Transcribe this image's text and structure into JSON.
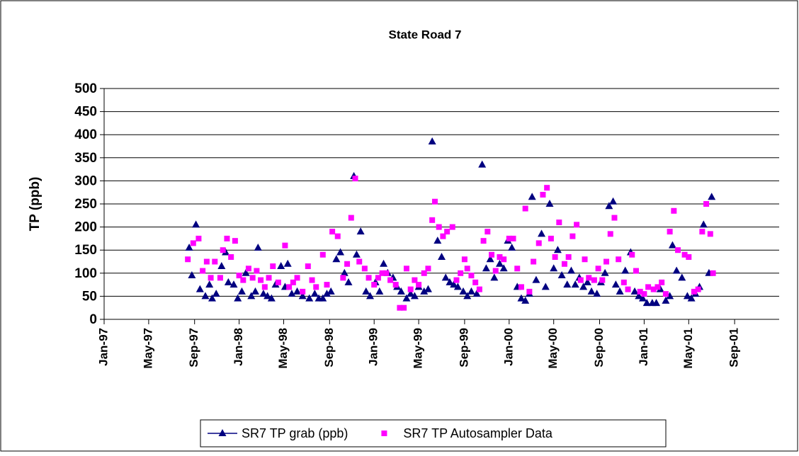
{
  "chart_data": {
    "type": "scatter",
    "title": "State Road 7",
    "y_label": "TP (ppb)",
    "xlim": [
      1997,
      2002
    ],
    "ylim": [
      0,
      500
    ],
    "yticks": [
      0,
      50,
      100,
      150,
      200,
      250,
      300,
      350,
      400,
      450,
      500
    ],
    "xticks": [
      {
        "value": 1997,
        "label": "Jan-97"
      },
      {
        "value": 1997.33,
        "label": "May-97"
      },
      {
        "value": 1997.67,
        "label": "Sep-97"
      },
      {
        "value": 1998,
        "label": "Jan-98"
      },
      {
        "value": 1998.33,
        "label": "May-98"
      },
      {
        "value": 1998.67,
        "label": "Sep-98"
      },
      {
        "value": 1999,
        "label": "Jan-99"
      },
      {
        "value": 1999.33,
        "label": "May-99"
      },
      {
        "value": 1999.67,
        "label": "Sep-99"
      },
      {
        "value": 2000,
        "label": "Jan-00"
      },
      {
        "value": 2000.33,
        "label": "May-00"
      },
      {
        "value": 2000.67,
        "label": "Sep-00"
      },
      {
        "value": 2001,
        "label": "Jan-01"
      },
      {
        "value": 2001.33,
        "label": "May-01"
      },
      {
        "value": 2001.67,
        "label": "Sep-01"
      }
    ],
    "grid": true,
    "series": [
      {
        "name": "SR7 TP grab (ppb)",
        "color": "#000080",
        "marker": "triangle",
        "x": [
          1997.63,
          1997.65,
          1997.68,
          1997.71,
          1997.75,
          1997.78,
          1997.8,
          1997.83,
          1997.87,
          1997.9,
          1997.92,
          1997.96,
          1997.99,
          1998.02,
          1998.05,
          1998.09,
          1998.12,
          1998.14,
          1998.18,
          1998.21,
          1998.24,
          1998.27,
          1998.31,
          1998.34,
          1998.36,
          1998.39,
          1998.43,
          1998.47,
          1998.52,
          1998.56,
          1998.59,
          1998.62,
          1998.65,
          1998.68,
          1998.72,
          1998.75,
          1998.78,
          1998.81,
          1998.85,
          1998.87,
          1998.9,
          1998.94,
          1998.97,
          1999.01,
          1999.04,
          1999.07,
          1999.1,
          1999.14,
          1999.17,
          1999.2,
          1999.24,
          1999.27,
          1999.3,
          1999.33,
          1999.37,
          1999.4,
          1999.43,
          1999.47,
          1999.5,
          1999.53,
          1999.56,
          1999.59,
          1999.62,
          1999.66,
          1999.69,
          1999.72,
          1999.76,
          1999.8,
          1999.83,
          1999.86,
          1999.89,
          1999.93,
          1999.96,
          1999.99,
          2000.02,
          2000.06,
          2000.09,
          2000.12,
          2000.15,
          2000.17,
          2000.2,
          2000.24,
          2000.27,
          2000.3,
          2000.33,
          2000.36,
          2000.39,
          2000.43,
          2000.46,
          2000.49,
          2000.52,
          2000.55,
          2000.58,
          2000.61,
          2000.65,
          2000.68,
          2000.71,
          2000.74,
          2000.77,
          2000.79,
          2000.82,
          2000.86,
          2000.9,
          2000.93,
          2000.96,
          2000.99,
          2001.02,
          2001.06,
          2001.09,
          2001.12,
          2001.16,
          2001.19,
          2001.21,
          2001.24,
          2001.28,
          2001.32,
          2001.35,
          2001.38,
          2001.41,
          2001.44,
          2001.48,
          2001.5
        ],
        "values": [
          155,
          95,
          205,
          65,
          50,
          75,
          45,
          55,
          115,
          145,
          80,
          75,
          45,
          60,
          100,
          50,
          60,
          155,
          55,
          50,
          45,
          75,
          115,
          70,
          120,
          55,
          60,
          50,
          45,
          55,
          45,
          45,
          55,
          60,
          130,
          145,
          100,
          80,
          310,
          140,
          190,
          60,
          50,
          80,
          60,
          120,
          100,
          90,
          70,
          60,
          45,
          55,
          50,
          70,
          60,
          65,
          385,
          170,
          135,
          90,
          80,
          75,
          70,
          60,
          50,
          60,
          55,
          335,
          110,
          130,
          90,
          120,
          110,
          170,
          155,
          70,
          45,
          40,
          55,
          265,
          85,
          185,
          70,
          250,
          110,
          150,
          95,
          75,
          105,
          75,
          90,
          70,
          80,
          60,
          55,
          80,
          100,
          245,
          255,
          75,
          60,
          105,
          145,
          60,
          50,
          45,
          35,
          35,
          35,
          65,
          40,
          50,
          160,
          105,
          90,
          50,
          45,
          55,
          70,
          205,
          100,
          265
        ]
      },
      {
        "name": "SR7 TP Autosampler Data",
        "color": "#ff00ff",
        "marker": "square",
        "x": [
          1997.62,
          1997.66,
          1997.7,
          1997.73,
          1997.76,
          1997.79,
          1997.82,
          1997.86,
          1997.88,
          1997.91,
          1997.94,
          1997.97,
          1998.0,
          1998.03,
          1998.07,
          1998.1,
          1998.13,
          1998.16,
          1998.19,
          1998.22,
          1998.25,
          1998.29,
          1998.34,
          1998.37,
          1998.4,
          1998.43,
          1998.47,
          1998.51,
          1998.54,
          1998.57,
          1998.62,
          1998.65,
          1998.69,
          1998.73,
          1998.77,
          1998.8,
          1998.83,
          1998.86,
          1998.89,
          1998.93,
          1998.96,
          1999.0,
          1999.03,
          1999.06,
          1999.09,
          1999.12,
          1999.16,
          1999.19,
          1999.22,
          1999.24,
          1999.27,
          1999.3,
          1999.33,
          1999.37,
          1999.4,
          1999.43,
          1999.45,
          1999.48,
          1999.51,
          1999.54,
          1999.58,
          1999.61,
          1999.64,
          1999.67,
          1999.69,
          1999.72,
          1999.75,
          1999.78,
          1999.81,
          1999.84,
          1999.87,
          1999.9,
          1999.93,
          1999.96,
          2000.0,
          2000.03,
          2000.06,
          2000.09,
          2000.12,
          2000.15,
          2000.18,
          2000.22,
          2000.25,
          2000.28,
          2000.31,
          2000.34,
          2000.37,
          2000.41,
          2000.44,
          2000.47,
          2000.5,
          2000.53,
          2000.56,
          2000.59,
          2000.63,
          2000.66,
          2000.69,
          2000.72,
          2000.75,
          2000.78,
          2000.81,
          2000.85,
          2000.88,
          2000.91,
          2000.94,
          2000.97,
          2001.0,
          2001.03,
          2001.07,
          2001.1,
          2001.13,
          2001.16,
          2001.19,
          2001.22,
          2001.25,
          2001.3,
          2001.33,
          2001.37,
          2001.4,
          2001.43,
          2001.46,
          2001.49,
          2001.51
        ],
        "values": [
          130,
          165,
          175,
          105,
          125,
          90,
          125,
          90,
          150,
          175,
          135,
          170,
          95,
          85,
          110,
          90,
          105,
          85,
          70,
          90,
          115,
          80,
          160,
          70,
          80,
          90,
          60,
          115,
          85,
          70,
          140,
          75,
          190,
          180,
          90,
          120,
          220,
          305,
          125,
          110,
          90,
          75,
          90,
          100,
          100,
          85,
          75,
          25,
          25,
          110,
          65,
          85,
          75,
          100,
          110,
          215,
          255,
          200,
          180,
          190,
          200,
          85,
          100,
          130,
          110,
          95,
          80,
          65,
          170,
          190,
          140,
          105,
          135,
          130,
          175,
          175,
          110,
          70,
          240,
          60,
          125,
          165,
          270,
          285,
          175,
          135,
          210,
          120,
          135,
          180,
          205,
          85,
          130,
          90,
          85,
          110,
          85,
          125,
          185,
          220,
          130,
          80,
          65,
          140,
          105,
          60,
          55,
          70,
          65,
          70,
          80,
          55,
          190,
          235,
          150,
          140,
          135,
          60,
          65,
          190,
          250,
          185,
          100
        ]
      }
    ]
  }
}
